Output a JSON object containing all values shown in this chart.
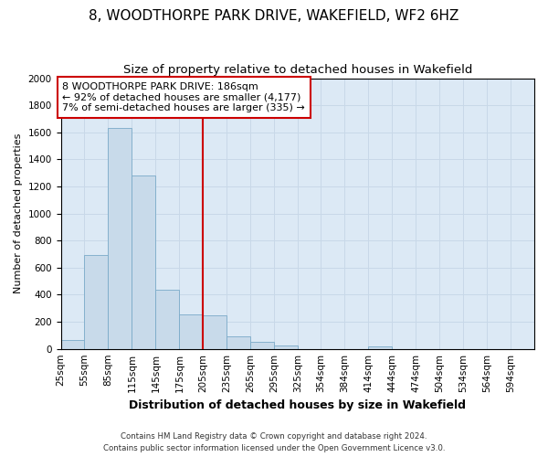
{
  "title": "8, WOODTHORPE PARK DRIVE, WAKEFIELD, WF2 6HZ",
  "subtitle": "Size of property relative to detached houses in Wakefield",
  "xlabel": "Distribution of detached houses by size in Wakefield",
  "ylabel": "Number of detached properties",
  "footnote1": "Contains HM Land Registry data © Crown copyright and database right 2024.",
  "footnote2": "Contains public sector information licensed under the Open Government Licence v3.0.",
  "annotation_line1": "8 WOODTHORPE PARK DRIVE: 186sqm",
  "annotation_line2": "← 92% of detached houses are smaller (4,177)",
  "annotation_line3": "7% of semi-detached houses are larger (335) →",
  "property_size": 186,
  "bar_edges": [
    25,
    55,
    85,
    115,
    145,
    175,
    205,
    235,
    265,
    295,
    325,
    354,
    384,
    414,
    444,
    474,
    504,
    534,
    564,
    594,
    624
  ],
  "bar_heights": [
    65,
    695,
    1630,
    1280,
    435,
    255,
    245,
    90,
    50,
    28,
    0,
    0,
    0,
    18,
    0,
    0,
    0,
    0,
    0,
    0
  ],
  "bar_color": "#c8daea",
  "bar_edge_color": "#7aaac8",
  "vline_color": "#cc0000",
  "vline_x": 205,
  "annotation_box_color": "#cc0000",
  "annotation_fill": "#ffffff",
  "ylim": [
    0,
    2000
  ],
  "yticks": [
    0,
    200,
    400,
    600,
    800,
    1000,
    1200,
    1400,
    1600,
    1800,
    2000
  ],
  "grid_color": "#c8d8e8",
  "axes_background": "#dce9f5",
  "fig_background": "#ffffff",
  "title_fontsize": 11,
  "subtitle_fontsize": 9.5,
  "xlabel_fontsize": 9,
  "ylabel_fontsize": 8,
  "tick_fontsize": 7.5,
  "annotation_fontsize": 8
}
